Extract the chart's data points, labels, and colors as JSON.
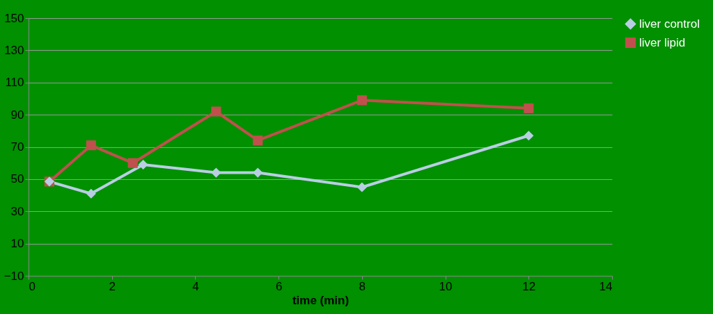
{
  "chart_data": {
    "type": "line",
    "xlabel": "time (min)",
    "xlim": [
      0,
      14
    ],
    "xticks": [
      0,
      2,
      4,
      6,
      8,
      10,
      12,
      14
    ],
    "ylim": [
      -10,
      150
    ],
    "yticks": [
      -10,
      10,
      30,
      50,
      70,
      90,
      110,
      130,
      150
    ],
    "grid": "y",
    "legend": "right",
    "series": [
      {
        "name": "liver control",
        "color": "#b9cde5",
        "marker": "diamond",
        "x": [
          0.5,
          1.5,
          2.75,
          4.5,
          5.5,
          8,
          12
        ],
        "values": [
          48.5,
          41,
          59,
          54,
          54,
          45,
          77
        ]
      },
      {
        "name": "liver lipid",
        "color": "#c0504d",
        "marker": "square",
        "x": [
          0.5,
          1.5,
          2.5,
          4.5,
          5.5,
          8,
          12
        ],
        "values": [
          48.5,
          71,
          60,
          92,
          74,
          99,
          94
        ]
      }
    ]
  }
}
